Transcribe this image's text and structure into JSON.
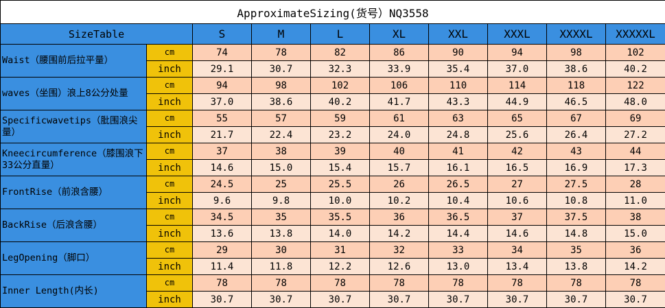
{
  "title": "ApproximateSizing(货号）NQ3558",
  "header": {
    "label": "SizeTable",
    "sizes": [
      "S",
      "M",
      "L",
      "XL",
      "XXL",
      "XXXL",
      "XXXXL",
      "XXXXXL"
    ]
  },
  "units": {
    "cm": "cm",
    "inch": "inch"
  },
  "rows": [
    {
      "label": "Waist（腰围前后拉平量）",
      "cm": [
        "74",
        "78",
        "82",
        "86",
        "90",
        "94",
        "98",
        "102"
      ],
      "inch": [
        "29.1",
        "30.7",
        "32.3",
        "33.9",
        "35.4",
        "37.0",
        "38.6",
        "40.2"
      ]
    },
    {
      "label": "waves（坐围）浪上8公分处量",
      "cm": [
        "94",
        "98",
        "102",
        "106",
        "110",
        "114",
        "118",
        "122"
      ],
      "inch": [
        "37.0",
        "38.6",
        "40.2",
        "41.7",
        "43.3",
        "44.9",
        "46.5",
        "48.0"
      ]
    },
    {
      "label": "Specificwavetips（肶围浪尖量）",
      "cm": [
        "55",
        "57",
        "59",
        "61",
        "63",
        "65",
        "67",
        "69"
      ],
      "inch": [
        "21.7",
        "22.4",
        "23.2",
        "24.0",
        "24.8",
        "25.6",
        "26.4",
        "27.2"
      ]
    },
    {
      "label": "Kneecircumference（膝围浪下33公分直量）",
      "cm": [
        "37",
        "38",
        "39",
        "40",
        "41",
        "42",
        "43",
        "44"
      ],
      "inch": [
        "14.6",
        "15.0",
        "15.4",
        "15.7",
        "16.1",
        "16.5",
        "16.9",
        "17.3"
      ]
    },
    {
      "label": "FrontRise（前浪含腰）",
      "cm": [
        "24.5",
        "25",
        "25.5",
        "26",
        "26.5",
        "27",
        "27.5",
        "28"
      ],
      "inch": [
        "9.6",
        "9.8",
        "10.0",
        "10.2",
        "10.4",
        "10.6",
        "10.8",
        "11.0"
      ]
    },
    {
      "label": "BackRise（后浪含腰）",
      "cm": [
        "34.5",
        "35",
        "35.5",
        "36",
        "36.5",
        "37",
        "37.5",
        "38"
      ],
      "inch": [
        "13.6",
        "13.8",
        "14.0",
        "14.2",
        "14.4",
        "14.6",
        "14.8",
        "15.0"
      ]
    },
    {
      "label": "LegOpening（脚口）",
      "cm": [
        "29",
        "30",
        "31",
        "32",
        "33",
        "34",
        "35",
        "36"
      ],
      "inch": [
        "11.4",
        "11.8",
        "12.2",
        "12.6",
        "13.0",
        "13.4",
        "13.8",
        "14.2"
      ]
    },
    {
      "label": "Inner Length(内长)",
      "cm": [
        "78",
        "78",
        "78",
        "78",
        "78",
        "78",
        "78",
        "78"
      ],
      "inch": [
        "30.7",
        "30.7",
        "30.7",
        "30.7",
        "30.7",
        "30.7",
        "30.7",
        "30.7"
      ]
    }
  ]
}
